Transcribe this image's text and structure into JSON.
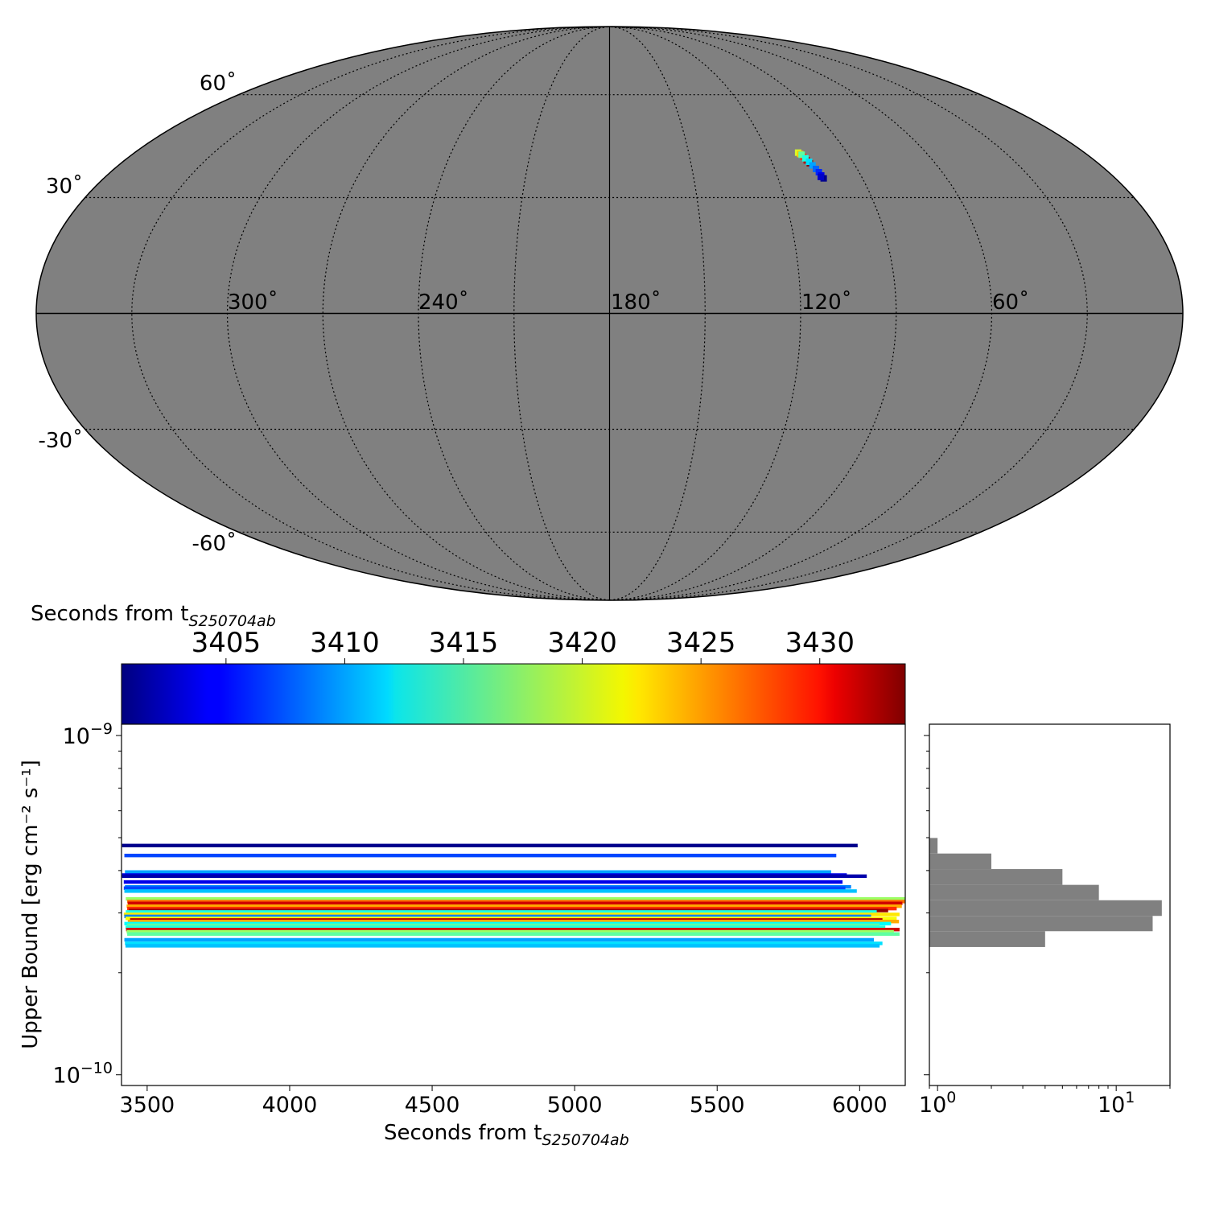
{
  "chart_data": [
    {
      "type": "heatmap",
      "panel": "sky-map",
      "projection": "mollweide",
      "background_color": "#808080",
      "grid": true,
      "longitude_ticks": [
        {
          "value": 300,
          "label": "300˚"
        },
        {
          "value": 240,
          "label": "240˚"
        },
        {
          "value": 180,
          "label": "180˚"
        },
        {
          "value": 120,
          "label": "120˚"
        },
        {
          "value": 60,
          "label": "60˚"
        }
      ],
      "latitude_ticks": [
        {
          "value": 60,
          "label": "60˚"
        },
        {
          "value": 30,
          "label": "30˚"
        },
        {
          "value": -30,
          "label": "-30˚"
        },
        {
          "value": -60,
          "label": "-60˚"
        }
      ],
      "coverage_patch": {
        "colormap": "jet",
        "points": [
          {
            "lon": 108.5,
            "lat": 42.4,
            "t": 3420
          },
          {
            "lon": 108.0,
            "lat": 42.0,
            "t": 3423
          },
          {
            "lon": 107.4,
            "lat": 41.2,
            "t": 3428
          },
          {
            "lon": 106.8,
            "lat": 40.2,
            "t": 3432
          },
          {
            "lon": 106.2,
            "lat": 39.4,
            "t": 3434
          },
          {
            "lon": 107.6,
            "lat": 41.8,
            "t": 3416
          },
          {
            "lon": 106.9,
            "lat": 40.8,
            "t": 3414
          },
          {
            "lon": 106.2,
            "lat": 39.8,
            "t": 3412
          },
          {
            "lon": 105.6,
            "lat": 38.8,
            "t": 3410
          },
          {
            "lon": 105.0,
            "lat": 37.8,
            "t": 3408
          },
          {
            "lon": 104.5,
            "lat": 36.9,
            "t": 3406
          },
          {
            "lon": 104.2,
            "lat": 36.0,
            "t": 3404
          },
          {
            "lon": 103.8,
            "lat": 35.2,
            "t": 3401
          },
          {
            "lon": 104.6,
            "lat": 35.6,
            "t": 3403
          }
        ]
      }
    },
    {
      "type": "bar",
      "panel": "colorbar",
      "colormap": "jet",
      "title": "Seconds from t",
      "title_subscript": "S250704ab",
      "range": [
        3400.6,
        3433.6
      ],
      "ticks": [
        3405,
        3410,
        3415,
        3420,
        3425,
        3430
      ]
    },
    {
      "type": "bar",
      "panel": "upper-bounds",
      "orientation": "horizontal",
      "xlabel": "Seconds from t",
      "xlabel_subscript": "S250704ab",
      "ylabel": "Upper Bound [erg cm⁻² s⁻¹]",
      "yscale": "log",
      "xlim": [
        3410,
        6160
      ],
      "ylim": [
        9.3e-11,
        1.08e-09
      ],
      "x_ticks": [
        3500,
        4000,
        4500,
        5000,
        5500,
        6000
      ],
      "y_ticks": [
        {
          "value": 1e-09,
          "mantissa": "10",
          "exponent": "−9"
        },
        {
          "value": 1e-10,
          "mantissa": "10",
          "exponent": "−10"
        }
      ],
      "series": [
        {
          "start": 3412,
          "end": 5993,
          "value": 4.74e-10,
          "t": 3401
        },
        {
          "start": 3420,
          "end": 5918,
          "value": 4.43e-10,
          "t": 3407
        },
        {
          "start": 3422,
          "end": 5900,
          "value": 3.96e-10,
          "t": 3410
        },
        {
          "start": 3412,
          "end": 5955,
          "value": 3.88e-10,
          "t": 3404
        },
        {
          "start": 3412,
          "end": 6025,
          "value": 3.85e-10,
          "t": 3402
        },
        {
          "start": 3418,
          "end": 5940,
          "value": 3.7e-10,
          "t": 3404
        },
        {
          "start": 3422,
          "end": 5970,
          "value": 3.58e-10,
          "t": 3409
        },
        {
          "start": 3418,
          "end": 5950,
          "value": 3.55e-10,
          "t": 3407
        },
        {
          "start": 3420,
          "end": 5990,
          "value": 3.48e-10,
          "t": 3411
        },
        {
          "start": 3425,
          "end": 6160,
          "value": 3.3e-10,
          "t": 3418
        },
        {
          "start": 3430,
          "end": 6160,
          "value": 3.24e-10,
          "t": 3426
        },
        {
          "start": 3432,
          "end": 6150,
          "value": 3.2e-10,
          "t": 3431
        },
        {
          "start": 3428,
          "end": 6148,
          "value": 3.14e-10,
          "t": 3424
        },
        {
          "start": 3430,
          "end": 6130,
          "value": 3.09e-10,
          "t": 3428
        },
        {
          "start": 3436,
          "end": 6100,
          "value": 3.05e-10,
          "t": 3433
        },
        {
          "start": 3425,
          "end": 6060,
          "value": 3.02e-10,
          "t": 3414
        },
        {
          "start": 3418,
          "end": 6140,
          "value": 2.97e-10,
          "t": 3422
        },
        {
          "start": 3420,
          "end": 6040,
          "value": 2.93e-10,
          "t": 3409
        },
        {
          "start": 3424,
          "end": 6130,
          "value": 2.89e-10,
          "t": 3421
        },
        {
          "start": 3440,
          "end": 6080,
          "value": 2.86e-10,
          "t": 3432
        },
        {
          "start": 3432,
          "end": 6138,
          "value": 2.83e-10,
          "t": 3424
        },
        {
          "start": 3420,
          "end": 6110,
          "value": 2.79e-10,
          "t": 3413
        },
        {
          "start": 3430,
          "end": 6070,
          "value": 2.76e-10,
          "t": 3416
        },
        {
          "start": 3424,
          "end": 6090,
          "value": 2.72e-10,
          "t": 3414
        },
        {
          "start": 3426,
          "end": 6140,
          "value": 2.68e-10,
          "t": 3431
        },
        {
          "start": 3428,
          "end": 6120,
          "value": 2.64e-10,
          "t": 3418
        },
        {
          "start": 3430,
          "end": 6140,
          "value": 2.6e-10,
          "t": 3416
        },
        {
          "start": 3420,
          "end": 6050,
          "value": 2.5e-10,
          "t": 3410
        },
        {
          "start": 3422,
          "end": 6080,
          "value": 2.44e-10,
          "t": 3412
        },
        {
          "start": 3424,
          "end": 6070,
          "value": 2.4e-10,
          "t": 3411
        }
      ]
    },
    {
      "type": "bar",
      "panel": "histogram",
      "orientation": "horizontal",
      "xscale": "log",
      "xlim": [
        0.9,
        20
      ],
      "x_ticks": [
        {
          "value": 1,
          "mantissa": "10",
          "exponent": "0"
        },
        {
          "value": 10,
          "mantissa": "10",
          "exponent": "1"
        }
      ],
      "bar_color": "#808080",
      "bins": [
        {
          "low": 2.38e-10,
          "high": 2.65e-10,
          "count": 4
        },
        {
          "low": 2.65e-10,
          "high": 2.94e-10,
          "count": 16
        },
        {
          "low": 2.94e-10,
          "high": 3.27e-10,
          "count": 18
        },
        {
          "low": 3.27e-10,
          "high": 3.63e-10,
          "count": 8
        },
        {
          "low": 3.63e-10,
          "high": 4.04e-10,
          "count": 5
        },
        {
          "low": 4.04e-10,
          "high": 4.49e-10,
          "count": 2
        },
        {
          "low": 4.49e-10,
          "high": 4.99e-10,
          "count": 1
        }
      ]
    }
  ]
}
